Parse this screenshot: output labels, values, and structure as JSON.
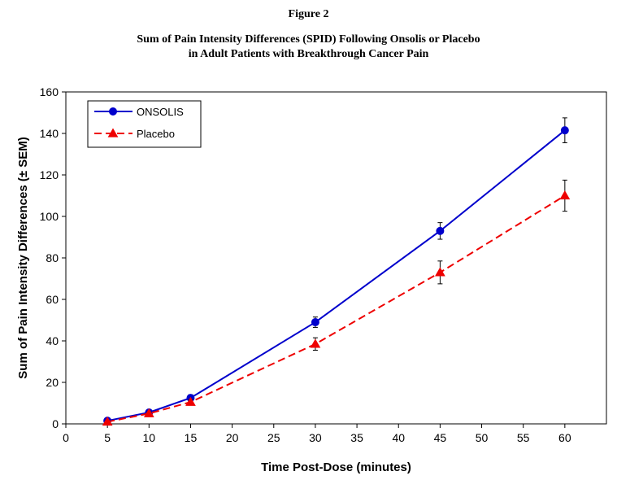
{
  "figure_label": "Figure 2",
  "title_lines": [
    "Sum of Pain Intensity Differences (SPID) Following Onsolis or Placebo",
    "in Adult Patients with Breakthrough Cancer Pain"
  ],
  "chart_data": {
    "type": "line",
    "xlabel": "Time Post-Dose (minutes)",
    "ylabel": "Sum of Pain Intensity Differences (± SEM)",
    "xlim": [
      0,
      65
    ],
    "ylim": [
      0,
      160
    ],
    "x_ticks": [
      0,
      5,
      10,
      15,
      20,
      25,
      30,
      35,
      40,
      45,
      50,
      55,
      60
    ],
    "y_ticks": [
      0,
      20,
      40,
      60,
      80,
      100,
      120,
      140,
      160
    ],
    "x": [
      5,
      10,
      15,
      30,
      45,
      60
    ],
    "grid": false,
    "legend_position": "top-left",
    "series": [
      {
        "name": "ONSOLIS",
        "color": "#0000CC",
        "marker": "circle",
        "line_style": "solid",
        "values": [
          1.5,
          5.5,
          12.5,
          49,
          93,
          141.5
        ],
        "sem": [
          0.5,
          1,
          1.5,
          2.5,
          4,
          6
        ]
      },
      {
        "name": "Placebo",
        "color": "#EE0000",
        "marker": "triangle",
        "line_style": "dashed",
        "values": [
          1,
          5,
          10.5,
          38.5,
          73,
          110
        ],
        "sem": [
          0.5,
          0.8,
          1.2,
          3,
          5.5,
          7.5
        ]
      }
    ]
  }
}
